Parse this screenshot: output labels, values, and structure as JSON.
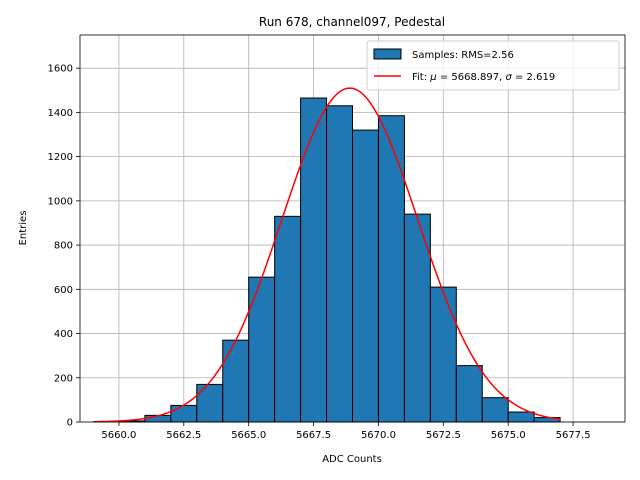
{
  "chart_data": {
    "type": "bar",
    "title": "Run 678, channel097, Pedestal",
    "xlabel": "ADC Counts",
    "ylabel": "Entries",
    "xlim": [
      5658.5,
      5679.5
    ],
    "ylim": [
      0,
      1750
    ],
    "xticks": [
      5660.0,
      5662.5,
      5665.0,
      5667.5,
      5670.0,
      5672.5,
      5675.0,
      5677.5
    ],
    "xtick_labels": [
      "5660.0",
      "5662.5",
      "5665.0",
      "5667.5",
      "5670.0",
      "5672.5",
      "5675.0",
      "5677.5"
    ],
    "yticks": [
      0,
      200,
      400,
      600,
      800,
      1000,
      1200,
      1400,
      1600
    ],
    "ytick_labels": [
      "0",
      "200",
      "400",
      "600",
      "800",
      "1000",
      "1200",
      "1400",
      "1600"
    ],
    "grid": true,
    "legend_position": "top-right",
    "bin_edges": [
      5660,
      5661,
      5662,
      5663,
      5664,
      5665,
      5666,
      5667,
      5668,
      5669,
      5670,
      5671,
      5672,
      5673,
      5674,
      5675,
      5676,
      5677
    ],
    "counts": [
      5,
      30,
      75,
      170,
      370,
      655,
      930,
      1465,
      1430,
      1320,
      1385,
      940,
      610,
      255,
      110,
      45,
      20
    ],
    "series": [
      {
        "name": "Samples: RMS=2.56",
        "type": "histogram",
        "color": "#1f77b4",
        "edgecolor": "#000000"
      },
      {
        "name_prefix": "Fit: ",
        "mu_symbol": "μ",
        "mu_text": " = 5668.897, ",
        "sigma_symbol": "σ",
        "sigma_text": " = 2.619",
        "type": "line",
        "color": "#ff0000",
        "mu": 5668.897,
        "sigma": 2.619,
        "amplitude": 1510,
        "x_range": [
          5659.0,
          5677.0
        ]
      }
    ]
  }
}
